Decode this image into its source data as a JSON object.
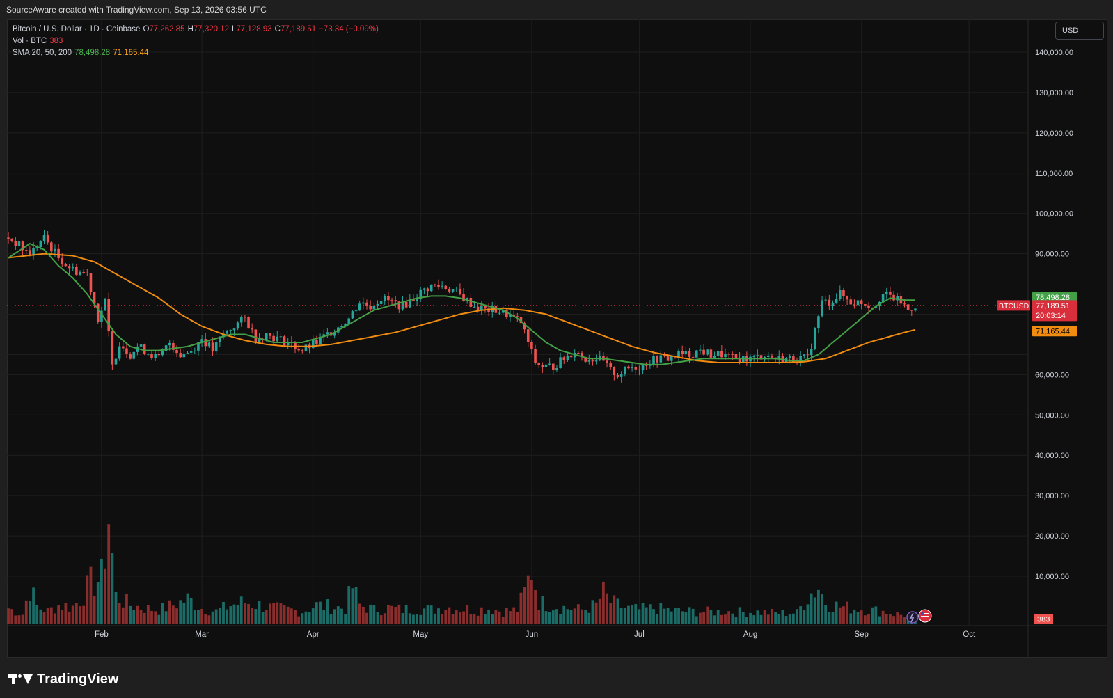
{
  "header": {
    "credit": "SourceAware created with TradingView.com, Sep 13, 2026 03:56 UTC"
  },
  "legend": {
    "symbol": "Bitcoin / U.S. Dollar · 1D · Coinbase",
    "o_label": "O",
    "o_value": "77,262.85",
    "h_label": "H",
    "h_value": "77,320.12",
    "l_label": "L",
    "l_value": "77,128.93",
    "c_label": "C",
    "c_value": "77,189.51",
    "change": "−73.34 (−0.09%)",
    "vol_label": "Vol · BTC",
    "vol_value": "383",
    "sma_label": "SMA 20, 50, 200",
    "sma20_value": "78,498.28",
    "sma50_value": "71,165.44"
  },
  "currency_button": "USD",
  "price_badges": {
    "sma20": "78,498.28",
    "symbol_tag": "BTCUSD",
    "last_price": "77,189.51",
    "countdown": "20:03:14",
    "sma50": "71,165.44",
    "volume": "383"
  },
  "brand": "TradingView",
  "colors": {
    "up": "#26a69a",
    "down": "#ef5350",
    "sma20": "#43a047",
    "sma50": "#f28c10",
    "background": "#0f0f0f",
    "grid": "#1e1e1e"
  },
  "chart_data": {
    "type": "candlestick",
    "symbol": "BTCUSD",
    "interval": "1D",
    "y_axis_labels": [
      "140,000.00",
      "130,000.00",
      "120,000.00",
      "110,000.00",
      "100,000.00",
      "90,000.00",
      "60,000.00",
      "50,000.00",
      "40,000.00",
      "30,000.00",
      "20,000.00",
      "10,000.00"
    ],
    "y_axis_values": [
      140000,
      130000,
      120000,
      110000,
      100000,
      90000,
      60000,
      50000,
      40000,
      30000,
      20000,
      10000
    ],
    "ylim": [
      2000,
      145000
    ],
    "x_axis_labels": [
      "Feb",
      "Mar",
      "Apr",
      "May",
      "Jun",
      "Jul",
      "Aug",
      "Sep",
      "Oct"
    ],
    "x_axis_day_index": [
      26,
      54,
      85,
      115,
      146,
      176,
      207,
      238,
      268
    ],
    "last_price": 77189.51,
    "grid": true,
    "price_segments": [
      [
        0,
        94000
      ],
      [
        6,
        90000
      ],
      [
        10,
        94000
      ],
      [
        14,
        89000
      ],
      [
        18,
        86000
      ],
      [
        22,
        85000
      ],
      [
        25,
        74000
      ],
      [
        27,
        78000
      ],
      [
        29,
        62000
      ],
      [
        31,
        68000
      ],
      [
        34,
        65000
      ],
      [
        36,
        67000
      ],
      [
        38,
        66000
      ],
      [
        42,
        64000
      ],
      [
        45,
        68000
      ],
      [
        48,
        65000
      ],
      [
        51,
        66000
      ],
      [
        54,
        69000
      ],
      [
        57,
        66000
      ],
      [
        60,
        70000
      ],
      [
        63,
        72000
      ],
      [
        66,
        74000
      ],
      [
        69,
        69000
      ],
      [
        72,
        70000
      ],
      [
        75,
        69000
      ],
      [
        78,
        68000
      ],
      [
        82,
        66000
      ],
      [
        86,
        68000
      ],
      [
        89,
        70000
      ],
      [
        92,
        72000
      ],
      [
        95,
        74000
      ],
      [
        98,
        78000
      ],
      [
        101,
        77000
      ],
      [
        104,
        79000
      ],
      [
        107,
        78000
      ],
      [
        110,
        77000
      ],
      [
        113,
        79000
      ],
      [
        116,
        81000
      ],
      [
        118,
        82000
      ],
      [
        121,
        82000
      ],
      [
        124,
        81000
      ],
      [
        127,
        79000
      ],
      [
        130,
        77000
      ],
      [
        133,
        76000
      ],
      [
        136,
        76000
      ],
      [
        139,
        75000
      ],
      [
        141,
        74000
      ],
      [
        143,
        73000
      ],
      [
        145,
        68000
      ],
      [
        147,
        63000
      ],
      [
        149,
        62000
      ],
      [
        152,
        62000
      ],
      [
        155,
        64000
      ],
      [
        158,
        66000
      ],
      [
        161,
        64000
      ],
      [
        164,
        64000
      ],
      [
        166,
        63000
      ],
      [
        168,
        61000
      ],
      [
        170,
        60000
      ],
      [
        172,
        61000
      ],
      [
        174,
        62000
      ],
      [
        176,
        62000
      ],
      [
        178,
        63000
      ],
      [
        181,
        64000
      ],
      [
        184,
        64000
      ],
      [
        187,
        65000
      ],
      [
        190,
        65000
      ],
      [
        193,
        66000
      ],
      [
        196,
        65000
      ],
      [
        199,
        65000
      ],
      [
        202,
        64000
      ],
      [
        205,
        64000
      ],
      [
        208,
        64000
      ],
      [
        211,
        65000
      ],
      [
        214,
        64000
      ],
      [
        217,
        64000
      ],
      [
        219,
        64000
      ],
      [
        221,
        64000
      ],
      [
        223,
        64000
      ],
      [
        225,
        71000
      ],
      [
        227,
        78000
      ],
      [
        229,
        78000
      ],
      [
        232,
        80000
      ],
      [
        235,
        78000
      ],
      [
        238,
        78000
      ],
      [
        241,
        77000
      ],
      [
        244,
        80000
      ],
      [
        247,
        79000
      ],
      [
        249,
        78000
      ],
      [
        251,
        76000
      ],
      [
        253,
        77200
      ]
    ],
    "sma20_series": [
      [
        0,
        89000
      ],
      [
        6,
        92500
      ],
      [
        10,
        91000
      ],
      [
        14,
        87000
      ],
      [
        18,
        84000
      ],
      [
        22,
        80000
      ],
      [
        26,
        75000
      ],
      [
        30,
        70000
      ],
      [
        34,
        67000
      ],
      [
        38,
        66000
      ],
      [
        42,
        66000
      ],
      [
        46,
        66500
      ],
      [
        50,
        67000
      ],
      [
        54,
        68000
      ],
      [
        58,
        69000
      ],
      [
        62,
        70000
      ],
      [
        66,
        70000
      ],
      [
        70,
        69000
      ],
      [
        74,
        68000
      ],
      [
        78,
        68000
      ],
      [
        82,
        68000
      ],
      [
        86,
        69000
      ],
      [
        90,
        70000
      ],
      [
        94,
        72000
      ],
      [
        98,
        74000
      ],
      [
        102,
        76000
      ],
      [
        106,
        77000
      ],
      [
        110,
        78000
      ],
      [
        114,
        79000
      ],
      [
        118,
        79500
      ],
      [
        122,
        79500
      ],
      [
        126,
        79000
      ],
      [
        130,
        78000
      ],
      [
        134,
        77000
      ],
      [
        138,
        76000
      ],
      [
        142,
        74000
      ],
      [
        146,
        71000
      ],
      [
        150,
        68000
      ],
      [
        154,
        66000
      ],
      [
        158,
        65000
      ],
      [
        162,
        64000
      ],
      [
        166,
        64000
      ],
      [
        170,
        63500
      ],
      [
        174,
        63000
      ],
      [
        178,
        62500
      ],
      [
        182,
        62500
      ],
      [
        186,
        63000
      ],
      [
        190,
        63500
      ],
      [
        194,
        64000
      ],
      [
        198,
        64000
      ],
      [
        202,
        64000
      ],
      [
        206,
        64000
      ],
      [
        210,
        64000
      ],
      [
        214,
        64000
      ],
      [
        218,
        63500
      ],
      [
        222,
        63500
      ],
      [
        226,
        65000
      ],
      [
        230,
        68000
      ],
      [
        234,
        71000
      ],
      [
        238,
        74000
      ],
      [
        242,
        77000
      ],
      [
        246,
        79000
      ],
      [
        250,
        78500
      ],
      [
        253,
        78500
      ]
    ],
    "sma50_series": [
      [
        0,
        89000
      ],
      [
        10,
        90000
      ],
      [
        18,
        89500
      ],
      [
        24,
        88000
      ],
      [
        30,
        85000
      ],
      [
        36,
        82000
      ],
      [
        42,
        79000
      ],
      [
        48,
        75000
      ],
      [
        54,
        72000
      ],
      [
        60,
        70000
      ],
      [
        66,
        68500
      ],
      [
        72,
        67500
      ],
      [
        78,
        67000
      ],
      [
        84,
        67000
      ],
      [
        90,
        67500
      ],
      [
        96,
        68500
      ],
      [
        102,
        69500
      ],
      [
        108,
        70500
      ],
      [
        114,
        72000
      ],
      [
        120,
        73500
      ],
      [
        126,
        75000
      ],
      [
        132,
        76000
      ],
      [
        138,
        76500
      ],
      [
        144,
        76000
      ],
      [
        150,
        75000
      ],
      [
        156,
        73000
      ],
      [
        162,
        71000
      ],
      [
        168,
        69000
      ],
      [
        174,
        67000
      ],
      [
        180,
        65500
      ],
      [
        186,
        64500
      ],
      [
        192,
        63500
      ],
      [
        198,
        63000
      ],
      [
        204,
        63000
      ],
      [
        210,
        63000
      ],
      [
        216,
        63000
      ],
      [
        222,
        63200
      ],
      [
        228,
        64000
      ],
      [
        234,
        66000
      ],
      [
        240,
        68000
      ],
      [
        246,
        69500
      ],
      [
        250,
        70500
      ],
      [
        253,
        71165
      ]
    ],
    "volume_segments": [
      [
        0,
        5000
      ],
      [
        4,
        3000
      ],
      [
        6,
        12000
      ],
      [
        8,
        5500
      ],
      [
        11,
        4000
      ],
      [
        14,
        6000
      ],
      [
        18,
        5500
      ],
      [
        20,
        8000
      ],
      [
        23,
        13000
      ],
      [
        26,
        15000
      ],
      [
        28,
        35000
      ],
      [
        30,
        9000
      ],
      [
        34,
        6000
      ],
      [
        38,
        5000
      ],
      [
        42,
        4500
      ],
      [
        46,
        6000
      ],
      [
        50,
        8000
      ],
      [
        54,
        5000
      ],
      [
        58,
        4000
      ],
      [
        62,
        6000
      ],
      [
        66,
        7000
      ],
      [
        70,
        6000
      ],
      [
        74,
        5000
      ],
      [
        78,
        4500
      ],
      [
        82,
        4000
      ],
      [
        86,
        6000
      ],
      [
        90,
        5500
      ],
      [
        94,
        5000
      ],
      [
        96,
        12000
      ],
      [
        98,
        6000
      ],
      [
        102,
        4500
      ],
      [
        106,
        5000
      ],
      [
        110,
        4500
      ],
      [
        114,
        5000
      ],
      [
        118,
        4500
      ],
      [
        122,
        5500
      ],
      [
        126,
        5000
      ],
      [
        130,
        4500
      ],
      [
        134,
        5000
      ],
      [
        138,
        4000
      ],
      [
        142,
        4500
      ],
      [
        144,
        10000
      ],
      [
        146,
        18000
      ],
      [
        148,
        7000
      ],
      [
        152,
        6000
      ],
      [
        156,
        5000
      ],
      [
        160,
        4500
      ],
      [
        164,
        6000
      ],
      [
        166,
        10000
      ],
      [
        168,
        7000
      ],
      [
        172,
        5000
      ],
      [
        176,
        4500
      ],
      [
        180,
        5000
      ],
      [
        184,
        4500
      ],
      [
        188,
        4000
      ],
      [
        192,
        4000
      ],
      [
        196,
        3800
      ],
      [
        200,
        4000
      ],
      [
        204,
        3800
      ],
      [
        208,
        3800
      ],
      [
        212,
        3500
      ],
      [
        216,
        3500
      ],
      [
        220,
        3500
      ],
      [
        223,
        9000
      ],
      [
        226,
        12000
      ],
      [
        228,
        7000
      ],
      [
        232,
        5500
      ],
      [
        236,
        5000
      ],
      [
        240,
        4500
      ],
      [
        244,
        4000
      ],
      [
        248,
        3000
      ],
      [
        251,
        2500
      ],
      [
        253,
        383
      ]
    ]
  }
}
